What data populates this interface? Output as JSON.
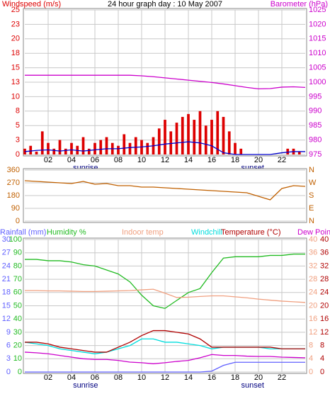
{
  "chart_data": [
    {
      "type": "bar",
      "title": "24 hour graph day : 10 May 2007",
      "ylabel": "Windspeed (m/s)",
      "y2label": "Barometer (hPa)",
      "annotations": [
        "sunrise",
        "sunset"
      ],
      "xlim": [
        0,
        24
      ],
      "xticks": [
        {
          "value": 2,
          "label": "02"
        },
        {
          "value": 4,
          "label": "04"
        },
        {
          "value": 6,
          "label": "06"
        },
        {
          "value": 8,
          "label": "08"
        },
        {
          "value": 10,
          "label": "10"
        },
        {
          "value": 12,
          "label": "12"
        },
        {
          "value": 14,
          "label": "14"
        },
        {
          "value": 16,
          "label": "16"
        },
        {
          "value": 18,
          "label": "18"
        },
        {
          "value": 20,
          "label": "20"
        },
        {
          "value": 22,
          "label": "22"
        }
      ],
      "ylim": [
        0,
        25
      ],
      "yticks": [
        0,
        {
          "value": 2.5,
          "label": "3"
        },
        5,
        {
          "value": 7.5,
          "label": "8"
        },
        10,
        {
          "value": 12.5,
          "label": "13"
        },
        15,
        {
          "value": 17.5,
          "label": "18"
        },
        20,
        {
          "value": 22.5,
          "label": "23"
        },
        25
      ],
      "y2lim": [
        975,
        1025
      ],
      "y2ticks": [
        975,
        980,
        985,
        990,
        995,
        1000,
        1005,
        1010,
        1015,
        1020,
        1025
      ],
      "x": [
        0,
        1,
        2,
        3,
        4,
        5,
        6,
        7,
        8,
        9,
        10,
        11,
        12,
        13,
        14,
        15,
        16,
        17,
        18,
        19,
        20,
        21,
        22,
        23,
        24
      ],
      "series": [
        {
          "style": "bar",
          "color": "#dd0000",
          "x": [
            0,
            0.5,
            1,
            1.5,
            2,
            2.5,
            3,
            3.5,
            4,
            4.5,
            5,
            5.5,
            6,
            6.5,
            7,
            7.5,
            8,
            8.5,
            9,
            9.5,
            10,
            10.5,
            11,
            11.5,
            12,
            12.5,
            13,
            13.5,
            14,
            14.5,
            15,
            15.5,
            16,
            16.5,
            17,
            17.5,
            18,
            18.5,
            19,
            19.5,
            20,
            20.5,
            21,
            21.5,
            22,
            22.5,
            23,
            23.5
          ],
          "values": [
            1,
            1.5,
            0.5,
            4,
            2,
            1,
            2.5,
            1,
            2,
            1.5,
            3,
            1,
            2,
            2.5,
            3,
            2,
            1.5,
            3.5,
            2,
            3,
            2.5,
            2,
            3,
            4.5,
            6,
            4,
            5.5,
            6.5,
            7,
            6,
            7.5,
            5,
            6,
            7.5,
            6.5,
            4,
            2,
            1,
            0,
            0,
            0,
            0,
            0,
            0,
            0,
            1,
            1,
            0.5
          ]
        },
        {
          "style": "line",
          "color": "#0000cc",
          "values": [
            0.5,
            0.7,
            0.8,
            0.6,
            0.8,
            0.6,
            0.8,
            1,
            1,
            1.2,
            1.3,
            1.5,
            1.8,
            2,
            2.2,
            2,
            1.5,
            0.3,
            0,
            0,
            0,
            0,
            0.3,
            0.5,
            0.5
          ]
        },
        {
          "style": "line",
          "color": "#cc00cc",
          "axis": "y2",
          "values": [
            1002.4,
            1002.4,
            1002.4,
            1002.4,
            1002.4,
            1002.4,
            1002.4,
            1002.4,
            1002.4,
            1002.4,
            1002.2,
            1001.9,
            1001.5,
            1001.1,
            1000.7,
            1000.3,
            999.9,
            999.4,
            998.8,
            998.2,
            997.7,
            997.8,
            998.3,
            998.4,
            998.2
          ]
        }
      ]
    },
    {
      "type": "line",
      "xlim": [
        0,
        24
      ],
      "ylim": [
        0,
        360
      ],
      "yticks": [
        0,
        90,
        180,
        270,
        360
      ],
      "y2lim": [
        0,
        360
      ],
      "y2ticks": [
        {
          "value": 0,
          "label": "N"
        },
        {
          "value": 90,
          "label": "E"
        },
        {
          "value": 180,
          "label": "S"
        },
        {
          "value": 270,
          "label": "W"
        },
        {
          "value": 360,
          "label": "N"
        }
      ],
      "x": [
        0,
        1,
        2,
        3,
        4,
        5,
        6,
        7,
        8,
        9,
        10,
        11,
        12,
        13,
        14,
        15,
        16,
        17,
        18,
        19,
        20,
        21,
        22,
        23,
        24
      ],
      "series": [
        {
          "style": "line",
          "color": "#c06000",
          "values": [
            285,
            280,
            275,
            270,
            265,
            280,
            260,
            265,
            250,
            250,
            240,
            240,
            235,
            230,
            225,
            220,
            215,
            210,
            205,
            200,
            175,
            150,
            230,
            250,
            245
          ]
        }
      ]
    },
    {
      "type": "line",
      "annotations": [
        "sunrise",
        "sunset"
      ],
      "xlim": [
        0,
        24
      ],
      "xticks": [
        {
          "value": 2,
          "label": "02"
        },
        {
          "value": 4,
          "label": "04"
        },
        {
          "value": 6,
          "label": "06"
        },
        {
          "value": 8,
          "label": "08"
        },
        {
          "value": 10,
          "label": "10"
        },
        {
          "value": 12,
          "label": "12"
        },
        {
          "value": 14,
          "label": "14"
        },
        {
          "value": 16,
          "label": "16"
        },
        {
          "value": 18,
          "label": "18"
        },
        {
          "value": 20,
          "label": "20"
        },
        {
          "value": 22,
          "label": "22"
        }
      ],
      "ylim": [
        0,
        30
      ],
      "yticks": [
        0,
        3,
        6,
        9,
        12,
        15,
        18,
        21,
        24,
        27,
        30
      ],
      "y3lim": [
        0,
        100
      ],
      "y3ticks": [
        0,
        10,
        20,
        30,
        40,
        50,
        60,
        70,
        80,
        90,
        100
      ],
      "y2lim": [
        0,
        40
      ],
      "y2ticks": [
        0,
        4,
        8,
        12,
        16,
        20,
        24,
        28,
        32,
        36,
        40
      ],
      "x": [
        0,
        1,
        2,
        3,
        4,
        5,
        6,
        7,
        8,
        9,
        10,
        11,
        12,
        13,
        14,
        15,
        16,
        17,
        18,
        19,
        20,
        21,
        22,
        23,
        24
      ],
      "series": [
        {
          "name": "Rainfall (mm)",
          "color": "#6060ff",
          "axis": "y",
          "values": [
            0,
            0,
            0,
            0,
            0,
            0,
            0,
            0,
            0,
            0,
            0,
            0,
            0,
            0,
            0,
            0,
            0.2,
            1.5,
            2.2,
            2.2,
            2.2,
            2.2,
            2.2,
            2.2,
            2.2
          ]
        },
        {
          "name": "Humidity %",
          "color": "#22bb22",
          "axis": "y3",
          "values": [
            85,
            85,
            84,
            84,
            83,
            81,
            80,
            77,
            74,
            68,
            58,
            50,
            48,
            54,
            60,
            63,
            75,
            86,
            87,
            87,
            87,
            88,
            88,
            89,
            89
          ]
        },
        {
          "name": "Indoor temp",
          "color": "#f0a080",
          "axis": "y2",
          "values": [
            24.6,
            24.6,
            24.5,
            24.5,
            24.4,
            24.3,
            24.3,
            24.4,
            24.5,
            24.6,
            24.8,
            25,
            23.8,
            22.5,
            22.6,
            22.8,
            23,
            23,
            22.7,
            22.4,
            22,
            21.7,
            21.4,
            21.2,
            21
          ]
        },
        {
          "name": "Windchill",
          "color": "#00dddd",
          "axis": "y2",
          "values": [
            9,
            8.5,
            8,
            7,
            6.5,
            6,
            5.5,
            6,
            7,
            8,
            10,
            10,
            9,
            9,
            8.5,
            8,
            7,
            7.5,
            7.5,
            7.5,
            7.5,
            7,
            7,
            7,
            7
          ]
        },
        {
          "name": "Temperature (°C)",
          "color": "#b00000",
          "axis": "y2",
          "values": [
            9,
            9,
            8.5,
            7.5,
            7,
            6.5,
            6,
            6,
            7.5,
            9,
            11,
            12.5,
            12.5,
            12,
            11.5,
            10,
            7.5,
            7.5,
            7.5,
            7.5,
            7.5,
            7.5,
            7,
            7,
            7
          ]
        },
        {
          "name": "Dew Point",
          "color": "#cc00cc",
          "axis": "y2",
          "values": [
            6,
            5.8,
            5.5,
            5,
            4.5,
            4,
            3.8,
            3.8,
            3.5,
            3,
            2.8,
            2.5,
            2.8,
            3.2,
            3.5,
            4.3,
            5.3,
            5,
            5,
            4.8,
            4.7,
            4.7,
            4.5,
            4.4,
            4.3
          ]
        }
      ]
    }
  ]
}
